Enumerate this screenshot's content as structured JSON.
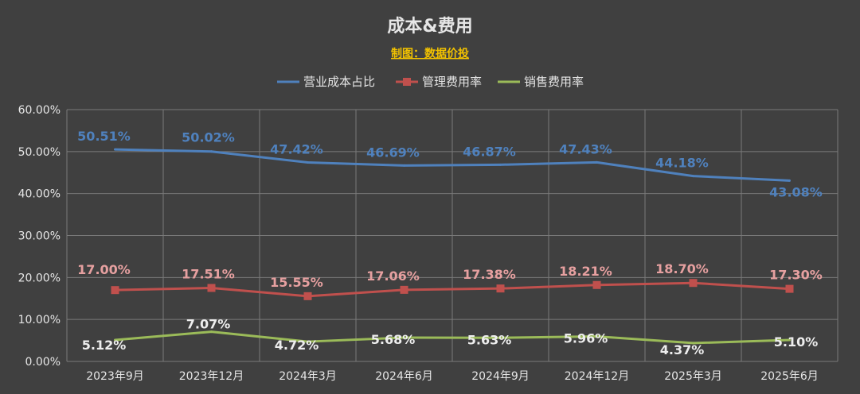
{
  "chart_data": {
    "type": "line",
    "title": "成本&费用",
    "subtitle": "制图：数据价投",
    "categories": [
      "2023年9月",
      "2023年12月",
      "2024年3月",
      "2024年6月",
      "2024年9月",
      "2024年12月",
      "2025年3月",
      "2025年6月"
    ],
    "ylim": [
      0,
      60
    ],
    "yticks": [
      "0.00%",
      "10.00%",
      "20.00%",
      "30.00%",
      "40.00%",
      "50.00%",
      "60.00%"
    ],
    "grid": true,
    "legend_position": "top",
    "series": [
      {
        "name": "营业成本占比",
        "color": "#4f81bd",
        "marker": "none",
        "values": [
          50.51,
          50.02,
          47.42,
          46.69,
          46.87,
          47.43,
          44.18,
          43.08
        ],
        "labels": [
          "50.51%",
          "50.02%",
          "47.42%",
          "46.69%",
          "46.87%",
          "47.43%",
          "44.18%",
          "43.08%"
        ]
      },
      {
        "name": "管理费用率",
        "color": "#c0504d",
        "label_color": "#e6a0a0",
        "marker": "square",
        "values": [
          17.0,
          17.51,
          15.55,
          17.06,
          17.38,
          18.21,
          18.7,
          17.3
        ],
        "labels": [
          "17.00%",
          "17.51%",
          "15.55%",
          "17.06%",
          "17.38%",
          "18.21%",
          "18.70%",
          "17.30%"
        ]
      },
      {
        "name": "销售费用率",
        "color": "#9bbb59",
        "label_color": "#eeeeee",
        "marker": "none",
        "values": [
          5.12,
          7.07,
          4.72,
          5.68,
          5.63,
          5.96,
          4.37,
          5.1
        ],
        "labels": [
          "5.12%",
          "7.07%",
          "4.72%",
          "5.68%",
          "5.63%",
          "5.96%",
          "4.37%",
          "5.10%"
        ]
      }
    ]
  }
}
